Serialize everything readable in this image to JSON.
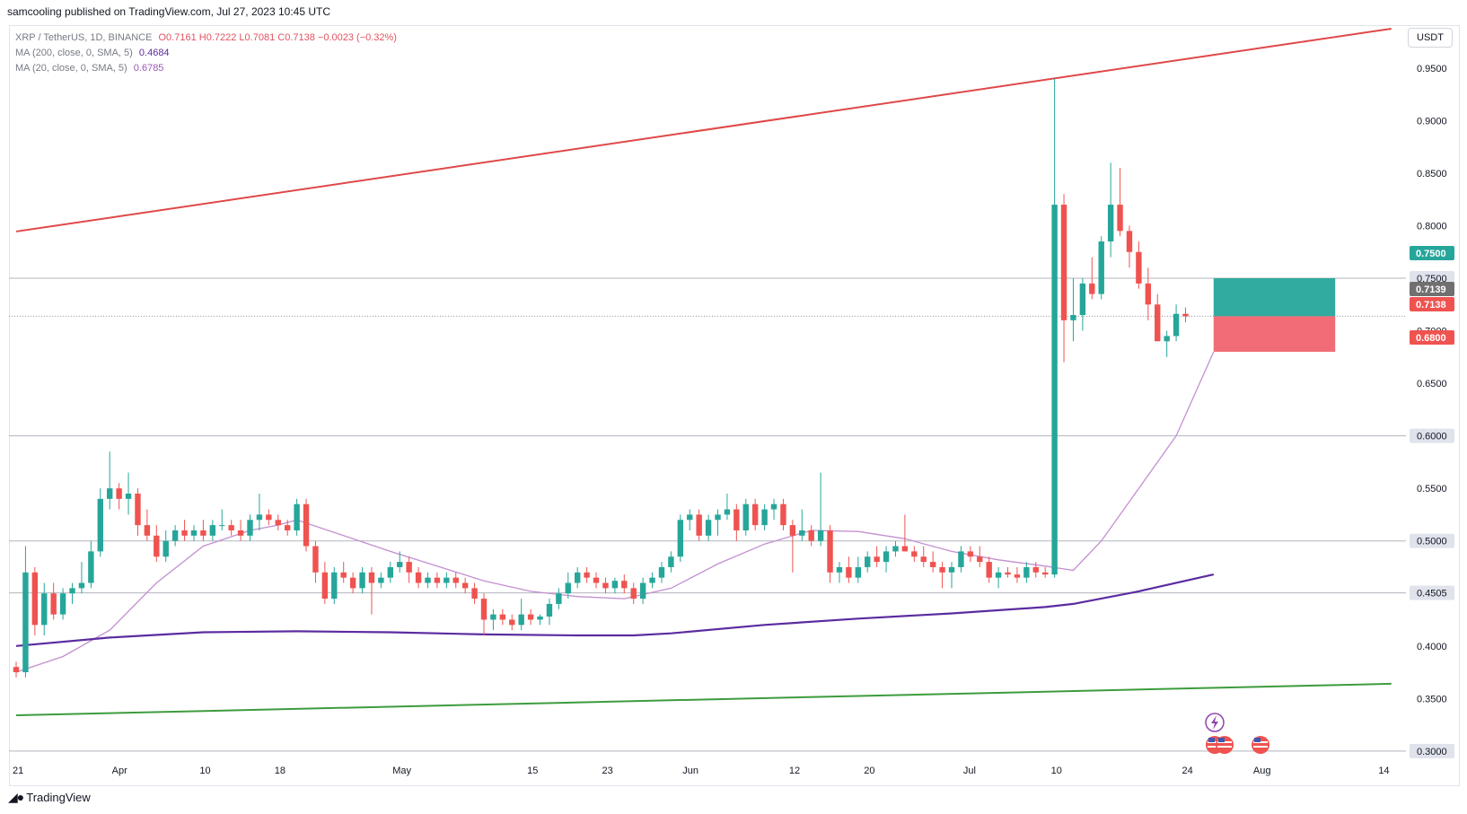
{
  "header": {
    "publisher": "samcooling published on TradingView.com, Jul 27, 2023 10:45 UTC"
  },
  "legend": {
    "symbol": "XRP / TetherUS, 1D, BINANCE",
    "open": "O0.7161",
    "high": "H0.7222",
    "low": "L0.7081",
    "close": "C0.7138",
    "change": "−0.0023 (−0.32%)",
    "ma200_label": "MA (200, close, 0, SMA, 5)",
    "ma200_value": "0.4684",
    "ma20_label": "MA (20, close, 0, SMA, 5)",
    "ma20_value": "0.6785"
  },
  "unit": "USDT",
  "footer": {
    "logo_icon": "tradingview-logo-icon",
    "brand": "TradingView"
  },
  "colors": {
    "up": "#26a69a",
    "down": "#ef5350",
    "ma200": "#5b2ca0",
    "ma20": "#c38fd0",
    "resistance_line": "#e04848",
    "support_line": "#3d9c3d",
    "target_zone": "#26a69a",
    "stop_zone": "#f06470"
  },
  "chart_data": {
    "type": "candlestick",
    "y_axis": {
      "ticks": [
        "0.9500",
        "0.9000",
        "0.8500",
        "0.8000",
        "0.7000",
        "0.6500",
        "0.5500",
        "0.4000",
        "0.3500"
      ],
      "range": [
        0.28,
        0.985
      ]
    },
    "x_axis": {
      "ticks": [
        {
          "label": "21",
          "day": 0
        },
        {
          "label": "Apr",
          "day": 11
        },
        {
          "label": "10",
          "day": 20
        },
        {
          "label": "18",
          "day": 28
        },
        {
          "label": "May",
          "day": 41
        },
        {
          "label": "15",
          "day": 55
        },
        {
          "label": "23",
          "day": 63
        },
        {
          "label": "Jun",
          "day": 72
        },
        {
          "label": "12",
          "day": 83
        },
        {
          "label": "20",
          "day": 91
        },
        {
          "label": "Jul",
          "day": 102
        },
        {
          "label": "10",
          "day": 111
        },
        {
          "label": "24",
          "day": 125
        },
        {
          "label": "Aug",
          "day": 133
        },
        {
          "label": "14",
          "day": 146
        }
      ]
    },
    "horizontal_levels": [
      {
        "price": 0.75,
        "label": "0.7500"
      },
      {
        "price": 0.6,
        "label": "0.6000"
      },
      {
        "price": 0.5,
        "label": "0.5000"
      },
      {
        "price": 0.4505,
        "label": "0.4505"
      },
      {
        "price": 0.3,
        "label": "0.3000"
      }
    ],
    "current_price_line": 0.7138,
    "price_labels": [
      {
        "label": "0.7500",
        "price": 0.75,
        "bg": "#26a69a",
        "fg": "#ffffff"
      },
      {
        "label": "0.7139",
        "price": 0.7139,
        "bg": "#707070",
        "fg": "#ffffff"
      },
      {
        "label": "0.7138",
        "price": 0.7138,
        "bg": "#ef5350",
        "fg": "#ffffff"
      },
      {
        "label": "0.6800",
        "price": 0.68,
        "bg": "#ef5350",
        "fg": "#ffffff"
      }
    ],
    "long_position": {
      "entry": 0.7138,
      "target": 0.75,
      "stop": 0.68,
      "start_day": 128,
      "end_day": 141
    },
    "trendlines": [
      {
        "name": "resistance",
        "from": {
          "day": 0,
          "price": 0.7945
        },
        "to": {
          "day": 147,
          "price": 0.9875
        }
      },
      {
        "name": "support",
        "from": {
          "day": 0,
          "price": 0.334
        },
        "to": {
          "day": 147,
          "price": 0.364
        }
      }
    ],
    "ma200": [
      [
        0,
        0.4
      ],
      [
        10,
        0.408
      ],
      [
        20,
        0.413
      ],
      [
        30,
        0.414
      ],
      [
        40,
        0.413
      ],
      [
        50,
        0.411
      ],
      [
        60,
        0.41
      ],
      [
        66,
        0.41
      ],
      [
        70,
        0.412
      ],
      [
        80,
        0.42
      ],
      [
        90,
        0.426
      ],
      [
        100,
        0.431
      ],
      [
        110,
        0.437
      ],
      [
        113,
        0.44
      ],
      [
        120,
        0.452
      ],
      [
        128,
        0.468
      ]
    ],
    "ma20": [
      [
        0,
        0.375
      ],
      [
        5,
        0.39
      ],
      [
        10,
        0.415
      ],
      [
        15,
        0.46
      ],
      [
        20,
        0.495
      ],
      [
        25,
        0.51
      ],
      [
        28,
        0.515
      ],
      [
        30,
        0.52
      ],
      [
        35,
        0.505
      ],
      [
        40,
        0.49
      ],
      [
        45,
        0.476
      ],
      [
        50,
        0.462
      ],
      [
        55,
        0.452
      ],
      [
        60,
        0.447
      ],
      [
        65,
        0.445
      ],
      [
        70,
        0.455
      ],
      [
        75,
        0.478
      ],
      [
        80,
        0.497
      ],
      [
        85,
        0.51
      ],
      [
        90,
        0.509
      ],
      [
        95,
        0.502
      ],
      [
        100,
        0.49
      ],
      [
        105,
        0.482
      ],
      [
        110,
        0.476
      ],
      [
        113,
        0.472
      ],
      [
        116,
        0.5
      ],
      [
        120,
        0.55
      ],
      [
        124,
        0.6
      ],
      [
        128,
        0.68
      ]
    ],
    "candles": [
      [
        0.38,
        0.385,
        0.37,
        0.375
      ],
      [
        0.375,
        0.495,
        0.37,
        0.47
      ],
      [
        0.47,
        0.475,
        0.41,
        0.42
      ],
      [
        0.42,
        0.46,
        0.41,
        0.45
      ],
      [
        0.45,
        0.46,
        0.425,
        0.43
      ],
      [
        0.43,
        0.455,
        0.425,
        0.45
      ],
      [
        0.45,
        0.46,
        0.44,
        0.455
      ],
      [
        0.455,
        0.48,
        0.45,
        0.46
      ],
      [
        0.46,
        0.5,
        0.455,
        0.49
      ],
      [
        0.49,
        0.55,
        0.485,
        0.54
      ],
      [
        0.54,
        0.585,
        0.53,
        0.55
      ],
      [
        0.55,
        0.555,
        0.53,
        0.54
      ],
      [
        0.54,
        0.565,
        0.525,
        0.545
      ],
      [
        0.545,
        0.55,
        0.505,
        0.515
      ],
      [
        0.515,
        0.53,
        0.5,
        0.505
      ],
      [
        0.505,
        0.515,
        0.48,
        0.485
      ],
      [
        0.485,
        0.51,
        0.48,
        0.5
      ],
      [
        0.5,
        0.515,
        0.495,
        0.51
      ],
      [
        0.51,
        0.52,
        0.5,
        0.505
      ],
      [
        0.505,
        0.515,
        0.5,
        0.51
      ],
      [
        0.51,
        0.52,
        0.5,
        0.505
      ],
      [
        0.505,
        0.52,
        0.5,
        0.515
      ],
      [
        0.515,
        0.53,
        0.51,
        0.515
      ],
      [
        0.515,
        0.52,
        0.505,
        0.51
      ],
      [
        0.51,
        0.52,
        0.5,
        0.505
      ],
      [
        0.505,
        0.525,
        0.5,
        0.52
      ],
      [
        0.52,
        0.545,
        0.51,
        0.525
      ],
      [
        0.525,
        0.53,
        0.515,
        0.52
      ],
      [
        0.52,
        0.525,
        0.51,
        0.515
      ],
      [
        0.515,
        0.52,
        0.505,
        0.51
      ],
      [
        0.51,
        0.54,
        0.505,
        0.535
      ],
      [
        0.535,
        0.54,
        0.49,
        0.495
      ],
      [
        0.495,
        0.5,
        0.46,
        0.47
      ],
      [
        0.47,
        0.48,
        0.44,
        0.445
      ],
      [
        0.445,
        0.475,
        0.44,
        0.47
      ],
      [
        0.47,
        0.48,
        0.46,
        0.465
      ],
      [
        0.465,
        0.47,
        0.45,
        0.455
      ],
      [
        0.455,
        0.475,
        0.45,
        0.47
      ],
      [
        0.47,
        0.475,
        0.43,
        0.46
      ],
      [
        0.46,
        0.47,
        0.455,
        0.465
      ],
      [
        0.465,
        0.48,
        0.46,
        0.475
      ],
      [
        0.475,
        0.49,
        0.47,
        0.48
      ],
      [
        0.48,
        0.485,
        0.46,
        0.47
      ],
      [
        0.47,
        0.475,
        0.455,
        0.46
      ],
      [
        0.46,
        0.47,
        0.455,
        0.465
      ],
      [
        0.465,
        0.47,
        0.455,
        0.46
      ],
      [
        0.46,
        0.47,
        0.455,
        0.465
      ],
      [
        0.465,
        0.47,
        0.455,
        0.46
      ],
      [
        0.46,
        0.465,
        0.45,
        0.455
      ],
      [
        0.455,
        0.46,
        0.44,
        0.445
      ],
      [
        0.445,
        0.45,
        0.41,
        0.425
      ],
      [
        0.425,
        0.435,
        0.415,
        0.43
      ],
      [
        0.43,
        0.435,
        0.42,
        0.425
      ],
      [
        0.425,
        0.43,
        0.415,
        0.42
      ],
      [
        0.42,
        0.445,
        0.415,
        0.43
      ],
      [
        0.43,
        0.435,
        0.42,
        0.425
      ],
      [
        0.425,
        0.43,
        0.42,
        0.428
      ],
      [
        0.428,
        0.445,
        0.42,
        0.44
      ],
      [
        0.44,
        0.455,
        0.435,
        0.45
      ],
      [
        0.45,
        0.47,
        0.445,
        0.46
      ],
      [
        0.46,
        0.475,
        0.455,
        0.47
      ],
      [
        0.47,
        0.475,
        0.46,
        0.465
      ],
      [
        0.465,
        0.47,
        0.455,
        0.46
      ],
      [
        0.46,
        0.465,
        0.45,
        0.455
      ],
      [
        0.455,
        0.465,
        0.45,
        0.462
      ],
      [
        0.462,
        0.468,
        0.45,
        0.455
      ],
      [
        0.455,
        0.46,
        0.44,
        0.445
      ],
      [
        0.445,
        0.465,
        0.44,
        0.46
      ],
      [
        0.46,
        0.47,
        0.455,
        0.465
      ],
      [
        0.465,
        0.48,
        0.46,
        0.475
      ],
      [
        0.475,
        0.49,
        0.47,
        0.485
      ],
      [
        0.485,
        0.525,
        0.48,
        0.52
      ],
      [
        0.52,
        0.53,
        0.51,
        0.525
      ],
      [
        0.525,
        0.53,
        0.5,
        0.505
      ],
      [
        0.505,
        0.525,
        0.5,
        0.52
      ],
      [
        0.52,
        0.53,
        0.505,
        0.525
      ],
      [
        0.525,
        0.545,
        0.52,
        0.53
      ],
      [
        0.53,
        0.535,
        0.5,
        0.51
      ],
      [
        0.51,
        0.54,
        0.505,
        0.535
      ],
      [
        0.535,
        0.54,
        0.51,
        0.515
      ],
      [
        0.515,
        0.535,
        0.51,
        0.53
      ],
      [
        0.53,
        0.54,
        0.52,
        0.535
      ],
      [
        0.535,
        0.54,
        0.51,
        0.515
      ],
      [
        0.515,
        0.52,
        0.47,
        0.505
      ],
      [
        0.505,
        0.53,
        0.5,
        0.51
      ],
      [
        0.51,
        0.515,
        0.495,
        0.5
      ],
      [
        0.5,
        0.565,
        0.495,
        0.51
      ],
      [
        0.51,
        0.515,
        0.46,
        0.47
      ],
      [
        0.47,
        0.48,
        0.46,
        0.475
      ],
      [
        0.475,
        0.485,
        0.46,
        0.465
      ],
      [
        0.465,
        0.485,
        0.46,
        0.475
      ],
      [
        0.475,
        0.49,
        0.47,
        0.485
      ],
      [
        0.485,
        0.495,
        0.475,
        0.48
      ],
      [
        0.48,
        0.495,
        0.47,
        0.49
      ],
      [
        0.49,
        0.5,
        0.485,
        0.495
      ],
      [
        0.495,
        0.525,
        0.49,
        0.49
      ],
      [
        0.49,
        0.495,
        0.48,
        0.485
      ],
      [
        0.485,
        0.495,
        0.475,
        0.48
      ],
      [
        0.48,
        0.49,
        0.47,
        0.475
      ],
      [
        0.475,
        0.48,
        0.455,
        0.47
      ],
      [
        0.47,
        0.48,
        0.455,
        0.475
      ],
      [
        0.475,
        0.495,
        0.47,
        0.49
      ],
      [
        0.49,
        0.495,
        0.48,
        0.485
      ],
      [
        0.485,
        0.495,
        0.475,
        0.48
      ],
      [
        0.48,
        0.485,
        0.46,
        0.465
      ],
      [
        0.465,
        0.475,
        0.455,
        0.47
      ],
      [
        0.47,
        0.475,
        0.465,
        0.468
      ],
      [
        0.468,
        0.475,
        0.46,
        0.465
      ],
      [
        0.465,
        0.48,
        0.46,
        0.475
      ],
      [
        0.475,
        0.48,
        0.465,
        0.47
      ],
      [
        0.47,
        0.475,
        0.465,
        0.468
      ],
      [
        0.468,
        0.94,
        0.465,
        0.82
      ],
      [
        0.82,
        0.83,
        0.67,
        0.71
      ],
      [
        0.71,
        0.75,
        0.69,
        0.715
      ],
      [
        0.715,
        0.75,
        0.7,
        0.745
      ],
      [
        0.745,
        0.77,
        0.73,
        0.735
      ],
      [
        0.735,
        0.79,
        0.73,
        0.785
      ],
      [
        0.785,
        0.86,
        0.77,
        0.82
      ],
      [
        0.82,
        0.855,
        0.79,
        0.795
      ],
      [
        0.795,
        0.8,
        0.76,
        0.775
      ],
      [
        0.775,
        0.785,
        0.74,
        0.745
      ],
      [
        0.745,
        0.76,
        0.71,
        0.725
      ],
      [
        0.725,
        0.735,
        0.69,
        0.69
      ],
      [
        0.69,
        0.7,
        0.675,
        0.695
      ],
      [
        0.695,
        0.725,
        0.69,
        0.7161
      ],
      [
        0.7161,
        0.7222,
        0.7081,
        0.7138
      ]
    ]
  }
}
